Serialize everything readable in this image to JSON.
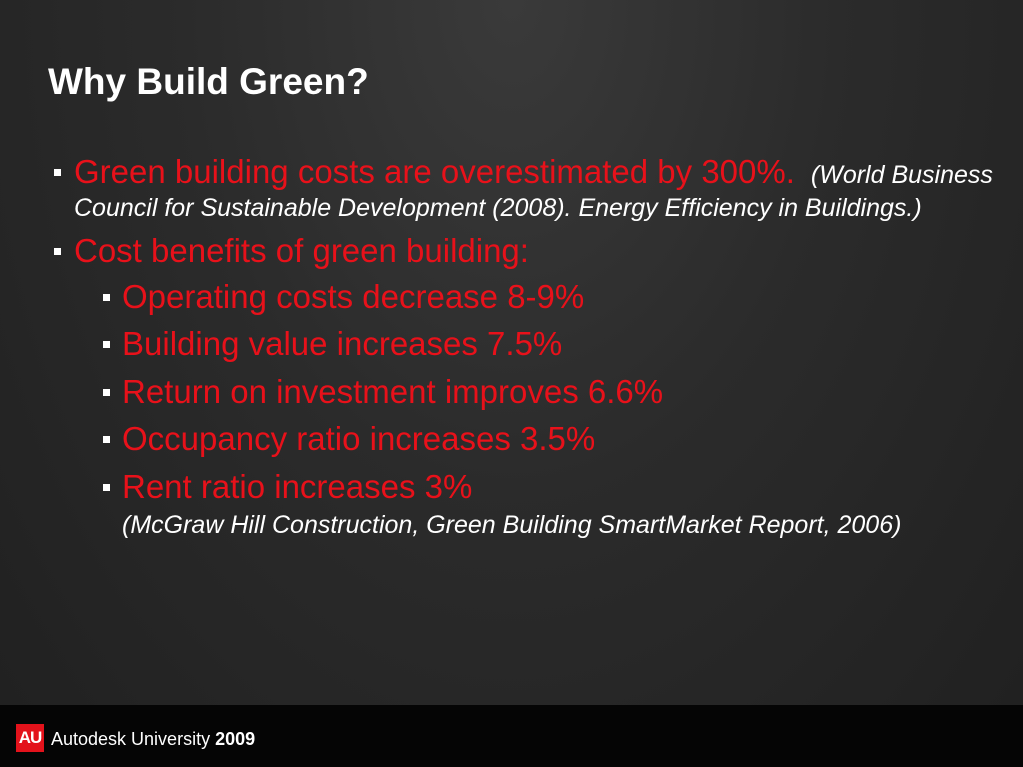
{
  "slide": {
    "title": "Why Build Green?",
    "bullets": [
      {
        "text": "Green building costs are overestimated by 300%.",
        "citation": "(World Business Council for Sustainable Development (2008). Energy Efficiency in Buildings.)"
      },
      {
        "text": "Cost benefits of green building:",
        "sub_items": [
          "Operating costs decrease 8-9%",
          "Building value increases 7.5%",
          "Return on investment improves 6.6%",
          "Occupancy ratio increases 3.5%",
          "Rent ratio increases 3%"
        ],
        "citation": "(McGraw Hill Construction, Green Building SmartMarket Report, 2006)"
      }
    ]
  },
  "footer": {
    "logo_mark": "AU",
    "brand": "Autodesk University",
    "year": "2009"
  },
  "colors": {
    "accent": "#e8111a",
    "title": "#ffffff",
    "footer_bg": "#050505"
  }
}
